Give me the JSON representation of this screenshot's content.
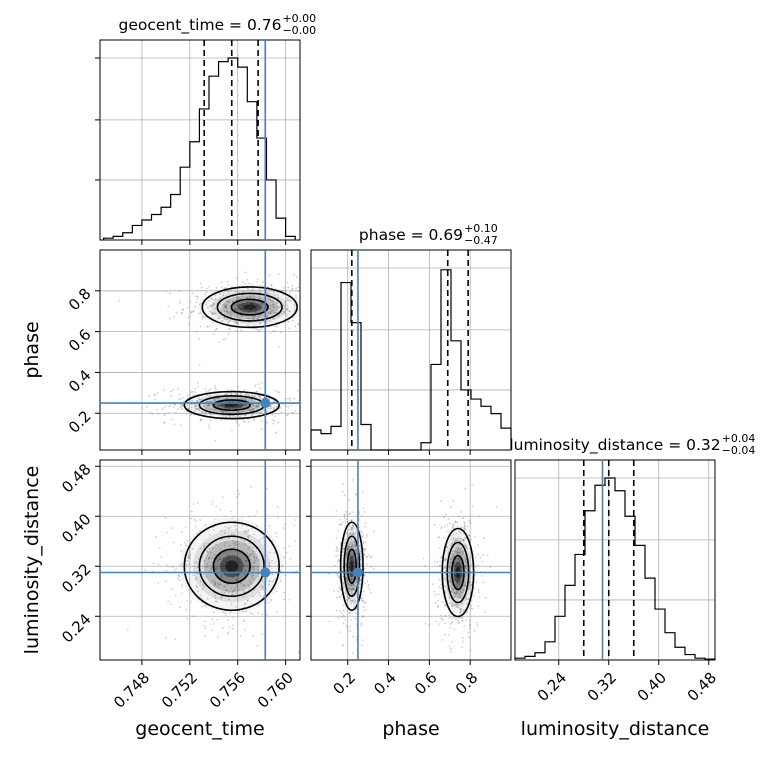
{
  "chart_data": {
    "type": "corner",
    "parameters": [
      "geocent_time",
      "phase",
      "luminosity_distance"
    ],
    "axis_labels": {
      "geocent_time": "geocent_time",
      "phase": "phase",
      "luminosity_distance": "luminosity_distance"
    },
    "ranges": {
      "geocent_time": [
        0.7445,
        0.7612
      ],
      "phase": [
        0.02,
        1.0
      ],
      "luminosity_distance": [
        0.17,
        0.49
      ]
    },
    "ticks": {
      "geocent_time": [
        0.748,
        0.752,
        0.756,
        0.76
      ],
      "phase": [
        0.2,
        0.4,
        0.6,
        0.8
      ],
      "luminosity_distance": [
        0.24,
        0.32,
        0.4,
        0.48
      ]
    },
    "tick_labels": {
      "geocent_time": [
        "0.748",
        "0.752",
        "0.756",
        "0.760"
      ],
      "phase": [
        "0.2",
        "0.4",
        "0.6",
        "0.8"
      ],
      "luminosity_distance": [
        "0.24",
        "0.32",
        "0.40",
        "0.48"
      ]
    },
    "truths": {
      "geocent_time": 0.7583,
      "phase": 0.25,
      "luminosity_distance": 0.31
    },
    "titles": [
      {
        "param": "geocent_time",
        "label": "geocent_time = 0.76",
        "plus": "+0.00",
        "minus": "−0.00"
      },
      {
        "param": "phase",
        "label": "phase = 0.69",
        "plus": "+0.10",
        "minus": "−0.47"
      },
      {
        "param": "luminosity_distance",
        "label": "luminosity_distance = 0.32",
        "plus": "+0.04",
        "minus": "−0.04"
      }
    ],
    "quantiles": {
      "geocent_time": [
        0.7532,
        0.7555,
        0.7577
      ],
      "phase": [
        0.22,
        0.69,
        0.79
      ],
      "luminosity_distance": [
        0.28,
        0.32,
        0.36
      ]
    },
    "histograms": {
      "geocent_time": {
        "edges": [
          0.7448,
          0.7456,
          0.7464,
          0.7472,
          0.748,
          0.7488,
          0.7496,
          0.7504,
          0.7512,
          0.752,
          0.7528,
          0.7536,
          0.7544,
          0.7552,
          0.756,
          0.7568,
          0.7576,
          0.7584,
          0.7592,
          0.76,
          0.7608
        ],
        "counts": [
          0.01,
          0.02,
          0.04,
          0.08,
          0.11,
          0.14,
          0.18,
          0.25,
          0.4,
          0.54,
          0.72,
          0.9,
          0.98,
          1.0,
          0.95,
          0.76,
          0.56,
          0.33,
          0.12,
          0.02
        ]
      },
      "phase": {
        "edges": [
          0.02,
          0.069,
          0.118,
          0.167,
          0.216,
          0.265,
          0.314,
          0.363,
          0.412,
          0.461,
          0.51,
          0.559,
          0.608,
          0.657,
          0.706,
          0.755,
          0.804,
          0.853,
          0.902,
          0.951,
          1.0
        ],
        "counts": [
          0.11,
          0.09,
          0.13,
          0.92,
          0.7,
          0.14,
          0.0,
          0.0,
          0.0,
          0.0,
          0.0,
          0.04,
          0.47,
          0.99,
          0.6,
          0.33,
          0.28,
          0.24,
          0.2,
          0.12
        ]
      },
      "luminosity_distance": {
        "edges": [
          0.17,
          0.186,
          0.202,
          0.218,
          0.234,
          0.25,
          0.266,
          0.282,
          0.298,
          0.314,
          0.33,
          0.346,
          0.362,
          0.378,
          0.394,
          0.41,
          0.426,
          0.442,
          0.458,
          0.474,
          0.49
        ],
        "counts": [
          0.01,
          0.02,
          0.04,
          0.1,
          0.24,
          0.41,
          0.58,
          0.82,
          0.96,
          1.0,
          0.93,
          0.79,
          0.63,
          0.45,
          0.28,
          0.15,
          0.07,
          0.03,
          0.01,
          0.005
        ]
      }
    },
    "pairs": [
      {
        "x": "geocent_time",
        "y": "phase",
        "modes": [
          {
            "x": 0.757,
            "y": 0.72,
            "sx": 0.0018,
            "sy": 0.045
          },
          {
            "x": 0.7555,
            "y": 0.24,
            "sx": 0.0018,
            "sy": 0.03
          }
        ]
      },
      {
        "x": "geocent_time",
        "y": "luminosity_distance",
        "modes": [
          {
            "x": 0.7555,
            "y": 0.32,
            "sx": 0.0018,
            "sy": 0.032
          }
        ]
      },
      {
        "x": "phase",
        "y": "luminosity_distance",
        "modes": [
          {
            "x": 0.22,
            "y": 0.32,
            "sx": 0.025,
            "sy": 0.032
          },
          {
            "x": 0.74,
            "y": 0.31,
            "sx": 0.035,
            "sy": 0.032
          }
        ]
      }
    ],
    "colors": {
      "truth": "#4682b4",
      "lines": "#000000",
      "grid": "#b0b0b0",
      "points": "#777777"
    },
    "grid": true
  }
}
